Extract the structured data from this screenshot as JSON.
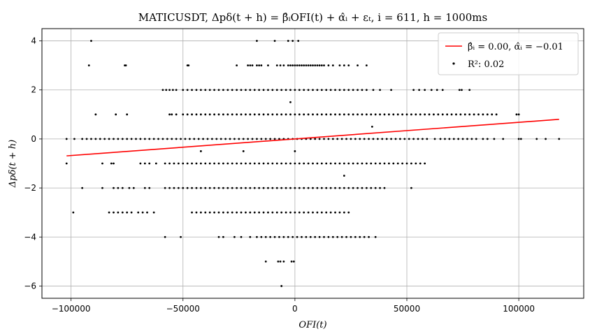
{
  "chart_data": {
    "type": "scatter",
    "title": "MATICUSDT, Δpδ(t + h) = β̂ᵢOFI(t) + α̂ᵢ + εₜ, i = 611, h = 1000ms",
    "xlabel": "OFI(t)",
    "ylabel": "Δpδ(t + h)",
    "xlim": [
      -113000,
      129000
    ],
    "ylim": [
      -6.5,
      4.5
    ],
    "xticks": [
      -100000,
      -50000,
      0,
      50000,
      100000
    ],
    "xtick_labels": [
      "−100000",
      "−50000",
      "0",
      "50000",
      "100000"
    ],
    "yticks": [
      -6,
      -4,
      -2,
      0,
      2,
      4
    ],
    "ytick_labels": [
      "−6",
      "−4",
      "−2",
      "0",
      "2",
      "4"
    ],
    "grid": true,
    "legend_position": "top-right",
    "colors": {
      "line": "#ff0000",
      "points": "#000000",
      "grid": "#b0b0b0"
    },
    "series": [
      {
        "name": "β̂ᵢ = 0.00, α̂ᵢ = −0.01",
        "kind": "line",
        "x": [
          -102000,
          118000
        ],
        "y": [
          -0.69,
          0.8
        ]
      },
      {
        "name": "R²: 0.02",
        "kind": "scatter",
        "rows": [
          {
            "y": 4,
            "x": [
              -91000,
              -17000,
              -9000,
              -3000,
              -1000,
              1500
            ]
          },
          {
            "y": 3,
            "x": [
              -92000,
              -76000,
              -75500,
              -48000,
              -47500,
              -26000,
              -21000,
              -20000,
              -19000,
              -17000,
              -16000,
              -15000,
              -12000,
              -8000,
              -6500,
              -5000,
              -3000,
              -2000,
              -1000,
              0,
              1000,
              2000,
              3000,
              4000,
              5000,
              6000,
              7000,
              8000,
              9000,
              10000,
              11000,
              12000,
              13000,
              15000,
              17000,
              20000,
              22000,
              24000,
              28000,
              32000
            ]
          },
          {
            "y": 2,
            "x": [
              -59000,
              -57500,
              -56000,
              -54500,
              -53000,
              -50000,
              -48000,
              -46000,
              -44000,
              -42000,
              -40000,
              -38000,
              -36000,
              -34000,
              -32000,
              -30000,
              -28000,
              -26000,
              -24000,
              -22000,
              -20000,
              -18000,
              -16000,
              -14000,
              -12000,
              -10000,
              -8000,
              -6000,
              -4000,
              -2000,
              0,
              2000,
              4000,
              6000,
              8000,
              10000,
              12000,
              14000,
              16000,
              18000,
              20000,
              22000,
              24000,
              26000,
              28000,
              30000,
              32000,
              35000,
              38000,
              43000,
              53000,
              55500,
              58000,
              61000,
              63500,
              66000,
              73500,
              74500,
              78000
            ]
          },
          {
            "y": 1,
            "x": [
              -89000,
              -80000,
              -75000,
              -56000,
              -55000,
              -53000,
              -50000,
              -48000,
              -46000,
              -44000,
              -42000,
              -40000,
              -38000,
              -36000,
              -34000,
              -32000,
              -30000,
              -28000,
              -26000,
              -24000,
              -22000,
              -20000,
              -18000,
              -16000,
              -14000,
              -12000,
              -10000,
              -8000,
              -6000,
              -4000,
              -2000,
              0,
              2000,
              4000,
              6000,
              8000,
              10000,
              12000,
              14000,
              16000,
              18000,
              20000,
              22000,
              24000,
              26000,
              28000,
              30000,
              32000,
              34000,
              36000,
              38000,
              40000,
              42000,
              44000,
              46000,
              48000,
              50000,
              52000,
              54000,
              56000,
              58000,
              60000,
              62000,
              64000,
              66000,
              68000,
              70000,
              72000,
              74000,
              76000,
              78000,
              80000,
              82000,
              84000,
              86000,
              88000,
              90000,
              99000,
              100000
            ]
          },
          {
            "y": 0,
            "x": [
              -102000,
              -98500,
              -95000,
              -93000,
              -91000,
              -89000,
              -87000,
              -85000,
              -83000,
              -81000,
              -79000,
              -77000,
              -75000,
              -73000,
              -71000,
              -69000,
              -67000,
              -65000,
              -63000,
              -61000,
              -59000,
              -57000,
              -55000,
              -53000,
              -51000,
              -49000,
              -47000,
              -45000,
              -43000,
              -41000,
              -39000,
              -37000,
              -35000,
              -33000,
              -31000,
              -29000,
              -27000,
              -25000,
              -23000,
              -21000,
              -19000,
              -17000,
              -15000,
              -13000,
              -11000,
              -9000,
              -7000,
              -5000,
              -3000,
              -1000,
              1000,
              3000,
              5000,
              7000,
              9000,
              11000,
              13000,
              15000,
              17000,
              19000,
              21000,
              23000,
              25000,
              27000,
              29000,
              31000,
              33000,
              35000,
              37000,
              39000,
              41000,
              43000,
              45000,
              47000,
              49000,
              51000,
              53000,
              55000,
              57000,
              59000,
              62500,
              65000,
              67000,
              69000,
              71000,
              73000,
              75000,
              77000,
              79000,
              81000,
              84000,
              86000,
              89000,
              93000,
              100000,
              101000,
              108000,
              112000,
              118000
            ]
          },
          {
            "y": -1,
            "x": [
              -102000,
              -86000,
              -82000,
              -81000,
              -69000,
              -67000,
              -65000,
              -62000,
              -58000,
              -56000,
              -54000,
              -52000,
              -50000,
              -48000,
              -46000,
              -44000,
              -42000,
              -40000,
              -38000,
              -36000,
              -34000,
              -32000,
              -30000,
              -28000,
              -26000,
              -24000,
              -22000,
              -20000,
              -18000,
              -16000,
              -14000,
              -12000,
              -10000,
              -8000,
              -6000,
              -4000,
              -2000,
              0,
              2000,
              4000,
              6000,
              8000,
              10000,
              12000,
              14000,
              16000,
              18000,
              20000,
              22000,
              24000,
              26000,
              28000,
              30000,
              32000,
              34000,
              36000,
              38000,
              40000,
              42000,
              44000,
              46000,
              48000,
              50000,
              52000,
              54000,
              56000,
              58000
            ]
          },
          {
            "y": -2,
            "x": [
              -95000,
              -86000,
              -81000,
              -79000,
              -77000,
              -74000,
              -72000,
              -67000,
              -65000,
              -58000,
              -56000,
              -54000,
              -52000,
              -50000,
              -48000,
              -46000,
              -44000,
              -42000,
              -40000,
              -38000,
              -36000,
              -34000,
              -32000,
              -30000,
              -28000,
              -26000,
              -24000,
              -22000,
              -20000,
              -18000,
              -16000,
              -14000,
              -12000,
              -10000,
              -8000,
              -6000,
              -4000,
              -2000,
              0,
              2000,
              4000,
              6000,
              8000,
              10000,
              12000,
              14000,
              16000,
              18000,
              20000,
              22000,
              24000,
              26000,
              28000,
              30000,
              32000,
              34000,
              36000,
              38000,
              40000,
              52000
            ]
          },
          {
            "y": -3,
            "x": [
              -99000,
              -83000,
              -81000,
              -79000,
              -77000,
              -75000,
              -73000,
              -70000,
              -68000,
              -66000,
              -63000,
              -46000,
              -44000,
              -42000,
              -40000,
              -38000,
              -36000,
              -34000,
              -32000,
              -30000,
              -28000,
              -26000,
              -24000,
              -22000,
              -20000,
              -18000,
              -16000,
              -14000,
              -12000,
              -10000,
              -8000,
              -6000,
              -4000,
              -2000,
              0,
              2000,
              4000,
              6000,
              8000,
              10000,
              12000,
              14000,
              16000,
              18000,
              20000,
              22000,
              24000
            ]
          },
          {
            "y": -4,
            "x": [
              -58000,
              -51000,
              -34000,
              -32000,
              -27000,
              -24000,
              -20000,
              -17000,
              -15000,
              -13000,
              -11000,
              -9000,
              -7000,
              -5000,
              -3000,
              -1000,
              1000,
              3000,
              5000,
              7000,
              9000,
              11000,
              13000,
              15000,
              17000,
              19000,
              21000,
              23000,
              25000,
              27000,
              29000,
              31000,
              33000,
              36000
            ]
          },
          {
            "y": -5,
            "x": [
              -13000,
              -7500,
              -6500,
              -5000,
              -1500,
              -500
            ]
          },
          {
            "y": -6,
            "x": [
              -6000
            ]
          },
          {
            "y": 1.5,
            "x": [
              -2000
            ]
          },
          {
            "y": 0.5,
            "x": [
              34500
            ]
          },
          {
            "y": -0.5,
            "x": [
              -42000,
              -23000,
              0
            ]
          },
          {
            "y": -1.5,
            "x": [
              22000
            ]
          }
        ]
      }
    ]
  }
}
